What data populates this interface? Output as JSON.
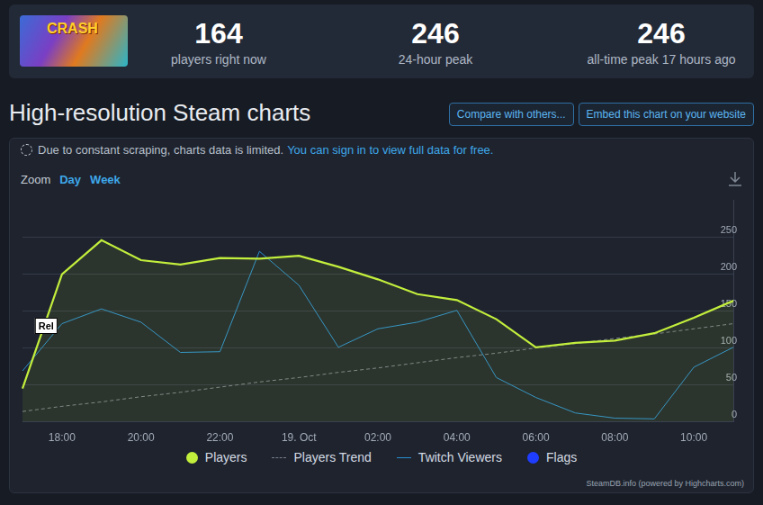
{
  "thumbnail": {
    "text": "CRASH"
  },
  "header": {
    "stats": [
      {
        "value": 164,
        "label": "players right now"
      },
      {
        "value": 246,
        "label": "24-hour peak"
      },
      {
        "value": 246,
        "label": "all-time peak 17 hours ago"
      }
    ]
  },
  "page_title": "High-resolution Steam charts",
  "buttons": [
    "Compare with others...",
    "Embed this chart on your website"
  ],
  "notice": {
    "text": "Due to constant scraping, charts data is limited.",
    "link": "You can sign in to view full data for free."
  },
  "zoom": {
    "label": "Zoom",
    "options": [
      "Day",
      "Week"
    ]
  },
  "credit": "SteamDB.info (powered by Highcharts.com)",
  "chart_data": {
    "type": "line",
    "categories": [
      null,
      "18:00",
      null,
      "20:00",
      null,
      "22:00",
      null,
      "19. Oct",
      null,
      "02:00",
      null,
      "04:00",
      null,
      "06:00",
      null,
      "08:00",
      null,
      "10:00",
      null
    ],
    "series": [
      {
        "name": "Players",
        "type": "area",
        "color": "#c2ee3c",
        "values": [
          45,
          200,
          246,
          219,
          213,
          222,
          221,
          225,
          210,
          193,
          173,
          165,
          139,
          101,
          107,
          110,
          120,
          141,
          164
        ]
      },
      {
        "name": "Players Trend",
        "type": "line",
        "line_style": "dashed",
        "color": "#7a818c",
        "values": [
          14,
          21,
          27,
          34,
          40,
          47,
          54,
          60,
          67,
          73,
          80,
          87,
          93,
          100,
          106,
          113,
          119,
          126,
          133
        ]
      },
      {
        "name": "Twitch Viewers",
        "type": "line",
        "color": "#2a8fd0",
        "values": [
          69,
          133,
          153,
          135,
          94,
          95,
          231,
          185,
          101,
          126,
          135,
          151,
          60,
          33,
          12,
          5,
          4,
          74,
          101
        ]
      }
    ],
    "flags": [
      {
        "name": "Flags",
        "color": "#1f3dff",
        "text": "Rel",
        "x": 0.6,
        "y": 130
      }
    ],
    "ylim": [
      0,
      300
    ],
    "yticks": [
      0,
      50,
      100,
      150,
      200,
      250
    ],
    "grid": true,
    "legend": "bottom"
  }
}
